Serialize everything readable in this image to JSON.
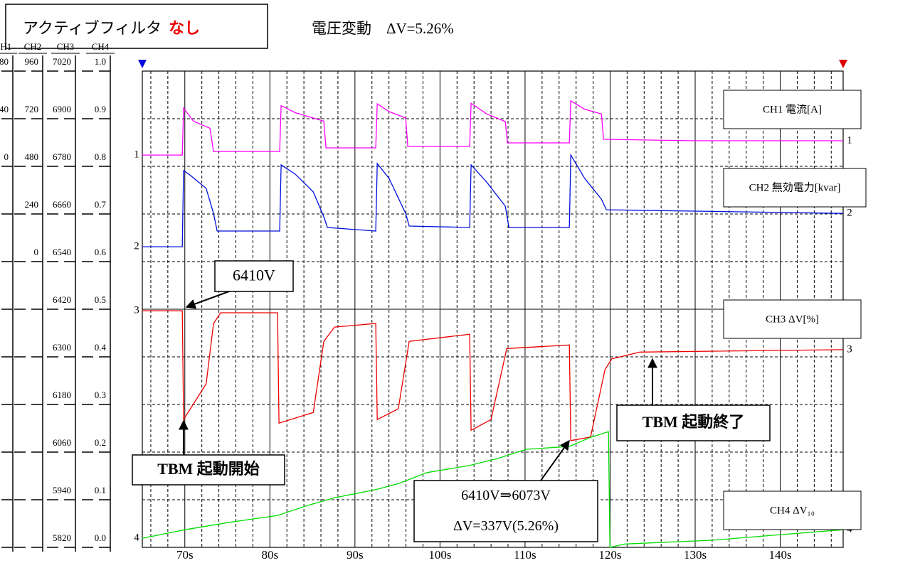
{
  "header": {
    "filter_label": "アクティブフィルタ",
    "filter_state": "なし",
    "voltage": "電圧変動　ΔV=5.26%"
  },
  "chart_data": {
    "type": "line",
    "xlim": [
      65,
      147.4
    ],
    "xticks": [
      {
        "value": 70,
        "label": "70s"
      },
      {
        "value": 80,
        "label": "80s"
      },
      {
        "value": 90,
        "label": "90s"
      },
      {
        "value": 100,
        "label": "100s"
      },
      {
        "value": 110,
        "label": "110s"
      },
      {
        "value": 120,
        "label": "120s"
      },
      {
        "value": 130,
        "label": "130s"
      },
      {
        "value": 140,
        "label": "140s"
      }
    ],
    "minor_grid_step": 2,
    "grid": true,
    "scales": [
      {
        "name": "CH1",
        "lim": [
          -320,
          80
        ],
        "ticks": [
          80,
          40,
          0
        ]
      },
      {
        "name": "CH2",
        "lim": [
          -1440,
          960
        ],
        "ticks": [
          960,
          720,
          480,
          240,
          0
        ]
      },
      {
        "name": "CH3",
        "lim": [
          5820,
          7020
        ],
        "ticks": [
          7020,
          6900,
          6780,
          6660,
          6540,
          6420,
          6300,
          6180,
          6060,
          5940,
          5820
        ]
      },
      {
        "name": "CH4",
        "lim": [
          0,
          1
        ],
        "ticks": [
          {
            "value": 1,
            "label": "1.0"
          },
          0.9,
          0.8,
          0.7,
          0.6,
          0.5,
          0.4,
          0.3,
          0.2,
          0.1,
          {
            "value": 0,
            "label": "0.0"
          }
        ]
      }
    ],
    "series": [
      {
        "name": "CH1 電流[A]",
        "marker": "1",
        "color": "#ff00ff",
        "scale": 0,
        "x": [
          65,
          69.7,
          69.85,
          71,
          72.95,
          73.37,
          81.15,
          81.32,
          83,
          86.34,
          86.59,
          92.45,
          92.62,
          94,
          95.96,
          96.21,
          103.49,
          103.66,
          105.5,
          107.68,
          107.93,
          115.21,
          115.38,
          117,
          118.97,
          119.23,
          130,
          147.4
        ],
        "values": [
          9.5,
          9.5,
          49,
          38,
          32,
          12.5,
          12.5,
          51,
          45,
          38,
          15.5,
          15.5,
          52.5,
          46,
          40.6,
          16.7,
          16.7,
          53,
          44,
          37.6,
          19.7,
          19.7,
          55,
          48,
          44,
          22.7,
          21.5,
          21.5
        ]
      },
      {
        "name": "CH2 無効電力[kvar]",
        "marker": "2",
        "color": "#0010e0",
        "scale": 1,
        "x": [
          65,
          69.7,
          69.85,
          70.5,
          72.5,
          73.37,
          73.8,
          81.15,
          81.32,
          83,
          85.1,
          86.34,
          86.76,
          92.45,
          92.62,
          94,
          95.96,
          96.38,
          103.49,
          103.66,
          105.5,
          107.68,
          108.1,
          115.21,
          115.38,
          117,
          118.97,
          119.56,
          147.4
        ],
        "values": [
          75,
          75,
          458,
          440,
          369,
          243,
          154,
          154,
          487,
          440,
          351,
          226,
          172,
          154,
          494,
          420,
          243,
          179,
          172,
          487,
          400,
          279,
          172,
          172,
          537,
          420,
          315,
          261,
          243
        ]
      },
      {
        "name": "CH3 ΔV[%]",
        "marker": "3",
        "color": "#ee0000",
        "scale": 2,
        "x": [
          65,
          69.7,
          69.85,
          72.5,
          73.37,
          74.2,
          80.9,
          81.07,
          85.1,
          86.34,
          87.6,
          92.45,
          92.62,
          95.1,
          96.38,
          103.49,
          103.66,
          106.0,
          107.85,
          115.21,
          115.38,
          117.7,
          119.4,
          120.2,
          123.5,
          147.4
        ],
        "values": [
          6416,
          6416,
          6142,
          6232,
          6384,
          6411,
          6411,
          6133,
          6160,
          6339,
          6375,
          6384,
          6142,
          6169,
          6339,
          6357,
          6115,
          6142,
          6321,
          6330,
          6089,
          6098,
          6268,
          6295,
          6312,
          6318
        ]
      },
      {
        "name": "CH4 ΔV₁₀",
        "marker": "4",
        "color": "#00dd00",
        "scale": 3,
        "x": [
          65,
          70.02,
          75.04,
          80.9,
          84.25,
          87.59,
          92.62,
          95.13,
          98.47,
          103.49,
          106.84,
          110.19,
          115.21,
          117.72,
          119.81,
          119.98,
          121.74,
          131.95,
          140.31,
          147.4
        ],
        "values": [
          0.019,
          0.037,
          0.052,
          0.067,
          0.087,
          0.104,
          0.122,
          0.134,
          0.157,
          0.172,
          0.187,
          0.206,
          0.212,
          0.231,
          0.243,
          0,
          0.007,
          0.015,
          0.027,
          0.037
        ]
      }
    ],
    "annotations": [
      {
        "lines": [
          "6410V"
        ]
      },
      {
        "lines": [
          "TBM 起動開始"
        ]
      },
      {
        "lines": [
          "6410V⇒6073V",
          "ΔV=337V(5.26%)"
        ]
      },
      {
        "lines": [
          "TBM 起動終了"
        ]
      }
    ]
  }
}
